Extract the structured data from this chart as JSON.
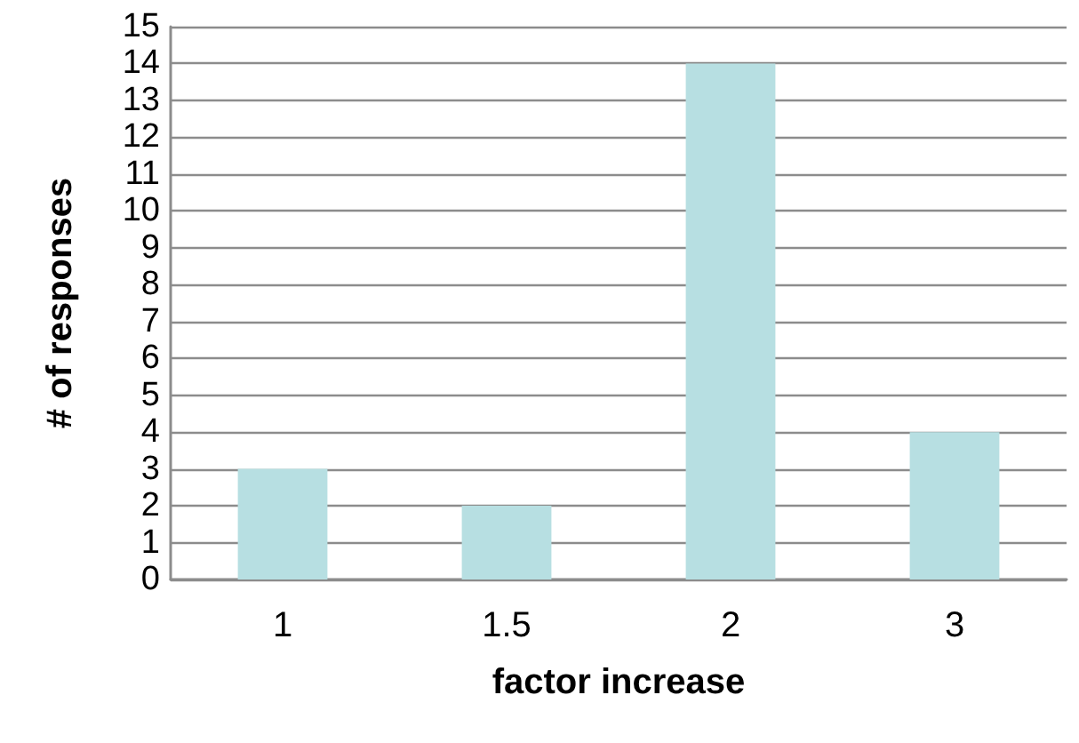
{
  "chart_data": {
    "type": "bar",
    "xlabel": "factor increase",
    "ylabel": "# of responses",
    "categories": [
      "1",
      "1.5",
      "2",
      "3"
    ],
    "values": [
      3,
      2,
      14,
      4
    ],
    "color": "#b7dfe2",
    "ylim": [
      0,
      15
    ],
    "yticks": [
      0,
      1,
      2,
      3,
      4,
      5,
      6,
      7,
      8,
      9,
      10,
      11,
      12,
      13,
      14,
      15
    ],
    "grid": "y"
  }
}
